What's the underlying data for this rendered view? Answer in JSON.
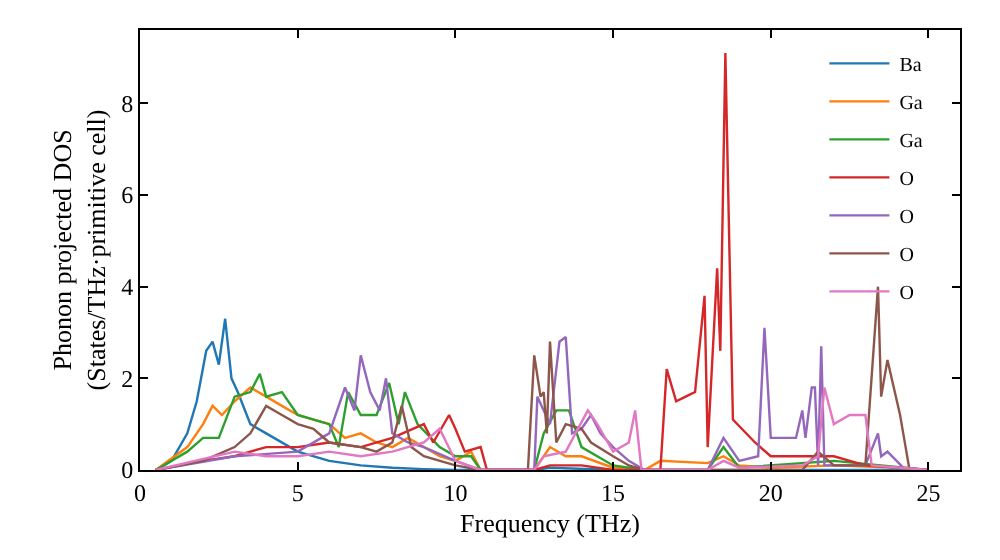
{
  "chart_data": {
    "type": "line",
    "xlabel": "Frequency (THz)",
    "ylabel": "Phonon projected DOS\n(States/THz·primitive cell)",
    "xlim": [
      0,
      26
    ],
    "ylim": [
      0,
      9.6
    ],
    "xticks": [
      0,
      5,
      10,
      15,
      20,
      25
    ],
    "yticks": [
      0,
      2,
      4,
      6,
      8
    ],
    "legend": "top right",
    "marker": "none",
    "line_style": "solid",
    "series": [
      {
        "name": "Ba",
        "color": "#1f77b4",
        "x": [
          0.5,
          1,
          1.5,
          1.8,
          2.1,
          2.3,
          2.5,
          2.7,
          2.9,
          3.1,
          3.5,
          4,
          5,
          6,
          7,
          8,
          9,
          10,
          12.5,
          13,
          15,
          18,
          25
        ],
        "values": [
          0,
          0.2,
          0.8,
          1.5,
          2.6,
          2.8,
          2.3,
          3.3,
          2.0,
          1.7,
          1.0,
          0.8,
          0.4,
          0.2,
          0.1,
          0.05,
          0.02,
          0,
          0,
          0.05,
          0,
          0,
          0
        ]
      },
      {
        "name": "Ga",
        "color": "#ff7f0e",
        "x": [
          0.5,
          1.5,
          2,
          2.3,
          2.6,
          3,
          3.5,
          4,
          4.5,
          5,
          5.5,
          6,
          6.5,
          7,
          7.5,
          8,
          8.5,
          9,
          9.5,
          10,
          10.5,
          10.8,
          12.5,
          13,
          13.5,
          14,
          15,
          16,
          16.5,
          18,
          18.5,
          19,
          20,
          22,
          24,
          25
        ],
        "values": [
          0,
          0.5,
          1.0,
          1.4,
          1.2,
          1.5,
          1.8,
          1.6,
          1.4,
          1.2,
          1.1,
          1.0,
          0.7,
          0.8,
          0.6,
          0.5,
          0.7,
          0.5,
          0.3,
          0.2,
          0.4,
          0,
          0,
          0.5,
          0.3,
          0.3,
          0.05,
          0,
          0.2,
          0.15,
          0.3,
          0.1,
          0.05,
          0.1,
          0.05,
          0
        ]
      },
      {
        "name": "Ga",
        "color": "#2ca02c",
        "x": [
          0.5,
          1.5,
          2,
          2.5,
          3,
          3.5,
          3.8,
          4,
          4.5,
          5,
          6,
          6.3,
          6.6,
          7,
          7.5,
          7.9,
          8.2,
          8.4,
          8.8,
          9.5,
          10,
          10.5,
          10.8,
          12.5,
          12.8,
          13.2,
          13.6,
          14,
          15,
          16,
          18,
          18.5,
          19,
          22,
          25
        ],
        "values": [
          0,
          0.4,
          0.7,
          0.7,
          1.6,
          1.7,
          2.1,
          1.6,
          1.7,
          1.2,
          1.0,
          0.5,
          1.7,
          1.2,
          1.2,
          1.9,
          1.0,
          1.7,
          1.0,
          0.5,
          0.3,
          0.3,
          0,
          0,
          0.8,
          1.3,
          1.3,
          0.5,
          0.1,
          0,
          0,
          0.5,
          0.05,
          0.2,
          0
        ]
      },
      {
        "name": "O",
        "color": "#d62728",
        "x": [
          0.5,
          2,
          3,
          4,
          5,
          6,
          7,
          8,
          9,
          9.3,
          9.8,
          10,
          10.3,
          10.8,
          11,
          12.5,
          13,
          14,
          15,
          16.5,
          16.7,
          17,
          17.3,
          17.6,
          17.9,
          18.0,
          18.3,
          18.4,
          18.56,
          18.8,
          19.5,
          20,
          22,
          23,
          25
        ],
        "values": [
          0,
          0.2,
          0.3,
          0.5,
          0.5,
          0.6,
          0.5,
          0.7,
          1.0,
          0.6,
          1.2,
          0.9,
          0.4,
          0.5,
          0,
          0,
          0.1,
          0.1,
          0,
          0,
          2.2,
          1.5,
          1.6,
          1.7,
          3.8,
          0.5,
          4.4,
          2.6,
          9.1,
          1.1,
          0.6,
          0.3,
          0.3,
          0.1,
          0
        ]
      },
      {
        "name": "O",
        "color": "#9467bd",
        "x": [
          0.5,
          3,
          5,
          6,
          6.5,
          6.8,
          7,
          7.3,
          7.6,
          7.8,
          8,
          8.5,
          9,
          10,
          10.8,
          12.5,
          12.6,
          13.0,
          13.3,
          13.5,
          13.7,
          14,
          14.3,
          14.6,
          15,
          15.5,
          16,
          18,
          18.5,
          19,
          19.6,
          19.8,
          20,
          20.8,
          21,
          21.1,
          21.3,
          21.4,
          21.5,
          21.6,
          21.7,
          23,
          23.4,
          23.5,
          23.7,
          24.2,
          25
        ],
        "values": [
          0,
          0.3,
          0.4,
          0.8,
          1.8,
          1.3,
          2.5,
          1.7,
          1.3,
          2.0,
          0.8,
          0.6,
          0.5,
          0.2,
          0,
          0,
          1.6,
          1.0,
          2.8,
          2.9,
          0.8,
          0.9,
          1.2,
          0.8,
          0.5,
          0.2,
          0,
          0,
          0.7,
          0.2,
          0.3,
          3.1,
          0.7,
          0.7,
          1.3,
          0.7,
          1.8,
          1.8,
          0.1,
          2.7,
          0.1,
          0.1,
          0.8,
          0.3,
          0.4,
          0.05,
          0
        ]
      },
      {
        "name": "O",
        "color": "#8c564b",
        "x": [
          0.5,
          2,
          3,
          3.5,
          4,
          4.5,
          5,
          5.5,
          6,
          7,
          7.5,
          8,
          8.3,
          8.6,
          9,
          10,
          10.8,
          12.3,
          12.5,
          12.7,
          12.8,
          12.9,
          13.0,
          13.2,
          13.5,
          14,
          14.3,
          15,
          15.5,
          16,
          21,
          21.5,
          22,
          23,
          23.4,
          23.5,
          23.7,
          24.1,
          24.2,
          24.4,
          25
        ],
        "values": [
          0,
          0.2,
          0.5,
          0.8,
          1.4,
          1.2,
          1.0,
          0.9,
          0.6,
          0.5,
          0.4,
          0.6,
          1.4,
          0.5,
          0.3,
          0.1,
          0,
          0,
          2.5,
          1.6,
          1.7,
          0.8,
          2.8,
          0.6,
          1.0,
          0.9,
          0.6,
          0.3,
          0.1,
          0,
          0,
          0.4,
          0.1,
          0.1,
          4.0,
          1.6,
          2.4,
          1.2,
          0.8,
          0,
          0
        ]
      },
      {
        "name": "O",
        "color": "#e377c2",
        "x": [
          0.5,
          3,
          4,
          5,
          6,
          7,
          8,
          9,
          9.5,
          10,
          10.8,
          12.5,
          12.8,
          13.5,
          14.2,
          14.5,
          15,
          15.5,
          15.7,
          15.9,
          18,
          18.5,
          19,
          21,
          21.5,
          21.7,
          22,
          22.5,
          23,
          23.2,
          25
        ],
        "values": [
          0,
          0.4,
          0.3,
          0.3,
          0.4,
          0.3,
          0.4,
          0.6,
          0.9,
          0.2,
          0,
          0,
          0.3,
          0.4,
          1.3,
          1.0,
          0.4,
          0.6,
          1.3,
          0,
          0,
          0.2,
          0.05,
          0.1,
          0.3,
          1.8,
          1.0,
          1.2,
          1.2,
          0.1,
          0
        ]
      }
    ]
  }
}
